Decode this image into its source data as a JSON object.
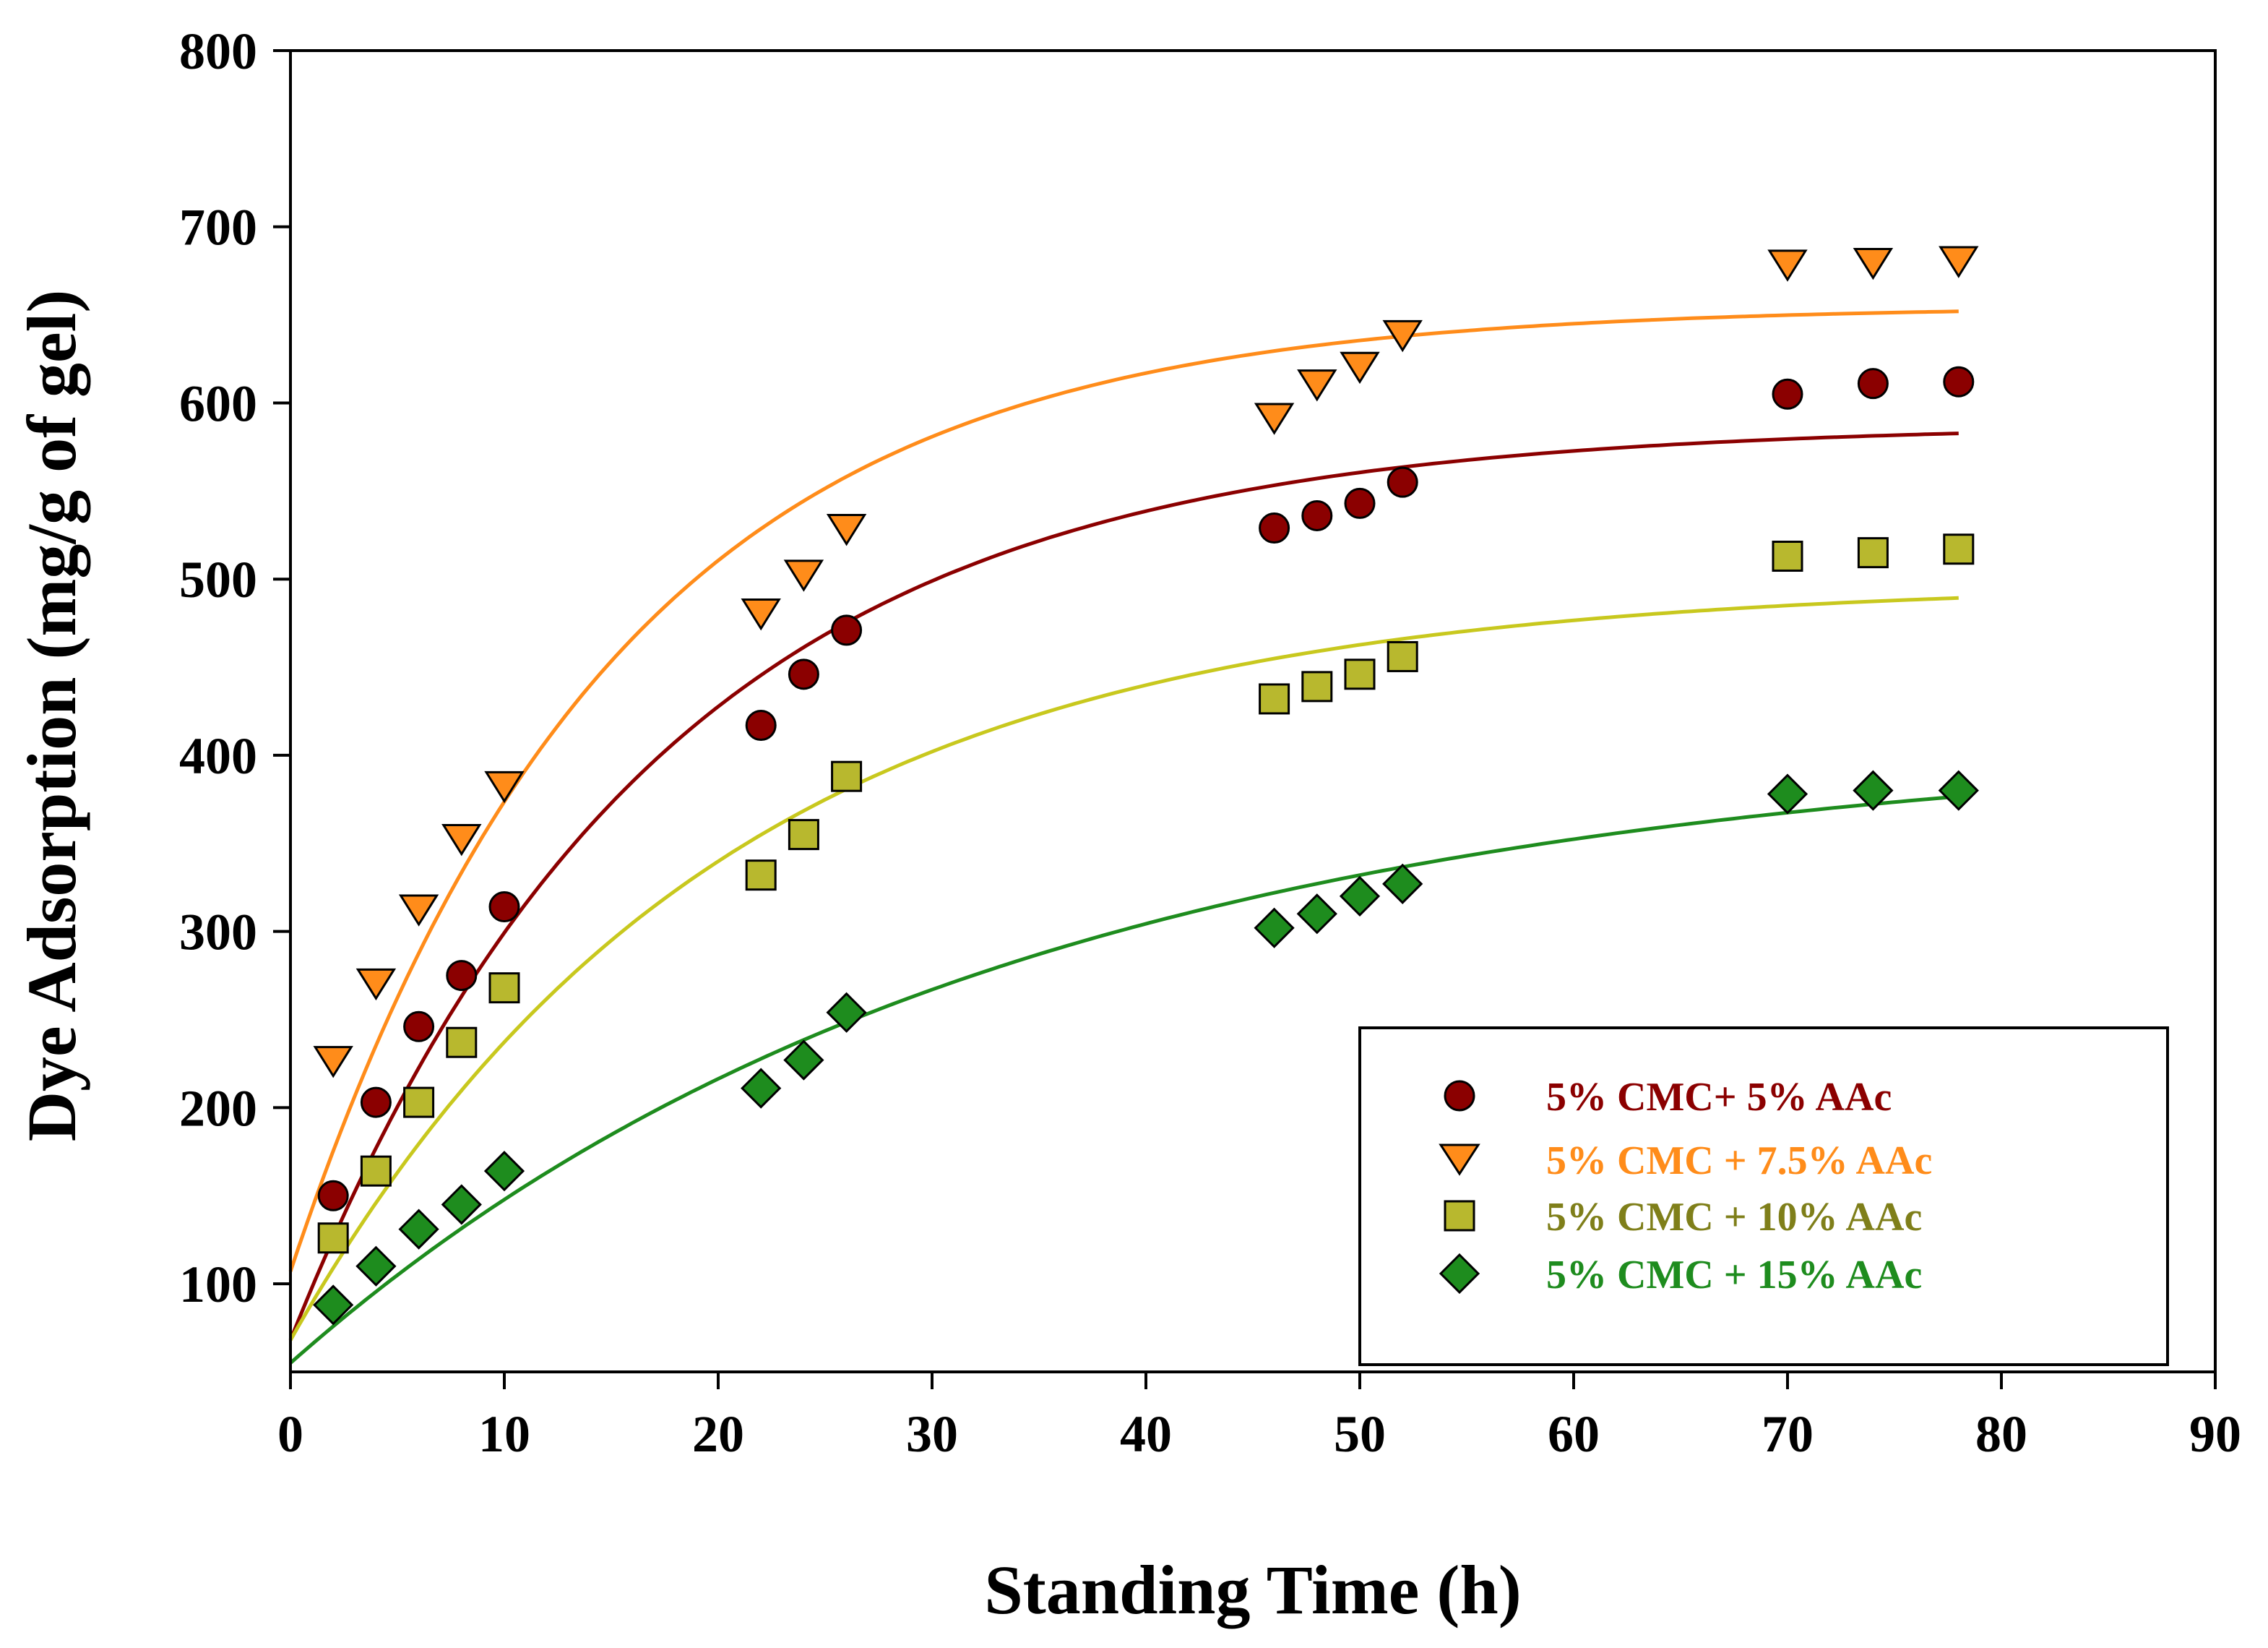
{
  "chart_data": {
    "type": "scatter",
    "title": "",
    "xlabel": "Standing Time (h)",
    "ylabel": "Dye Adsorption (mg/g of gel)",
    "xlim": [
      0,
      90
    ],
    "ylim": [
      50,
      800
    ],
    "xticks": [
      0,
      10,
      20,
      30,
      40,
      50,
      60,
      70,
      80,
      90
    ],
    "yticks": [
      100,
      200,
      300,
      400,
      500,
      600,
      700,
      800
    ],
    "legend_position": "bottom-right",
    "series": [
      {
        "name": "5% CMC+ 5% AAc",
        "marker": "circle",
        "color": "#8b0000",
        "line_color": "#8b0000",
        "x": [
          2,
          4,
          6,
          8,
          10,
          22,
          24,
          26,
          46,
          48,
          50,
          52,
          70,
          74,
          78
        ],
        "y": [
          150,
          203,
          246,
          275,
          314,
          417,
          446,
          471,
          529,
          536,
          543,
          555,
          605,
          611,
          612
        ],
        "fit": {
          "model": "y = a - b*exp(-x/t)",
          "a": 588,
          "b": 520,
          "t": 17,
          "x_range": [
            0,
            78
          ]
        }
      },
      {
        "name": "5% CMC + 7.5% AAc",
        "marker": "triangle-down",
        "color": "#ff8c1a",
        "line_color": "#ff8c1a",
        "x": [
          2,
          4,
          6,
          8,
          10,
          22,
          24,
          26,
          46,
          48,
          50,
          52,
          70,
          74,
          78
        ],
        "y": [
          227,
          271,
          313,
          353,
          383,
          481,
          503,
          529,
          592,
          611,
          621,
          639,
          679,
          680,
          681
        ],
        "fit": {
          "model": "y = a - b*exp(-x/t)",
          "a": 655,
          "b": 548,
          "t": 15,
          "x_range": [
            0,
            78
          ]
        }
      },
      {
        "name": "5% CMC + 10% AAc",
        "marker": "square",
        "color": "#b8b82e",
        "line_color": "#c8c81e",
        "x": [
          2,
          4,
          6,
          8,
          10,
          22,
          24,
          26,
          46,
          48,
          50,
          52,
          70,
          74,
          78
        ],
        "y": [
          126,
          164,
          203,
          237,
          268,
          332,
          355,
          388,
          432,
          439,
          446,
          456,
          513,
          515,
          517
        ],
        "fit": {
          "model": "y = a - b*exp(-x/t)",
          "a": 498,
          "b": 430,
          "t": 20,
          "x_range": [
            0,
            78
          ]
        }
      },
      {
        "name": "5% CMC + 15% AAc",
        "marker": "diamond",
        "color": "#1e8c1e",
        "line_color": "#1e8c1e",
        "x": [
          2,
          4,
          6,
          8,
          10,
          22,
          24,
          26,
          46,
          48,
          50,
          52,
          70,
          74,
          78
        ],
        "y": [
          88,
          110,
          131,
          145,
          164,
          211,
          227,
          254,
          302,
          310,
          320,
          327,
          378,
          380,
          380
        ],
        "fit": {
          "model": "y = a - b*exp(-x/t)",
          "a": 410,
          "b": 355,
          "t": 33,
          "x_range": [
            0,
            78
          ]
        }
      }
    ]
  },
  "legend": {
    "items": [
      {
        "label": "5% CMC+ 5% AAc",
        "color": "#8b0000"
      },
      {
        "label": "5% CMC + 7.5% AAc",
        "color": "#ff8c1a"
      },
      {
        "label": "5% CMC + 10% AAc",
        "color": "#7f7f1a"
      },
      {
        "label": "5% CMC + 15% AAc",
        "color": "#1e8c1e"
      }
    ]
  }
}
